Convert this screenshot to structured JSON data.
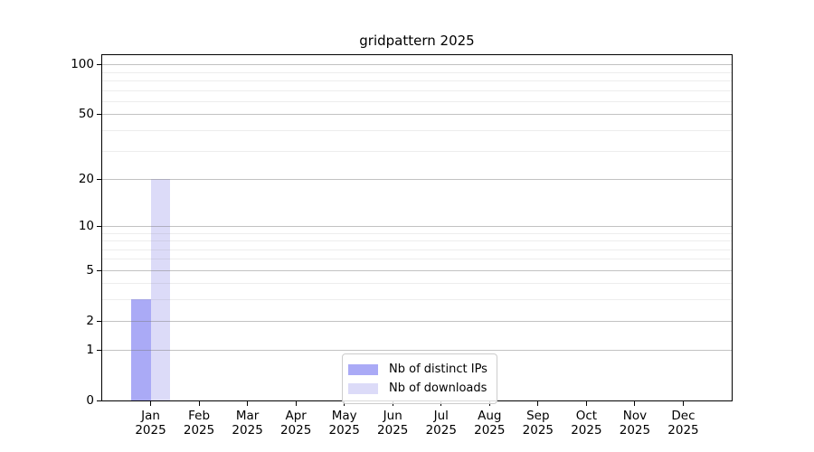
{
  "chart_data": {
    "type": "bar",
    "title": "gridpattern 2025",
    "year_label": "2025",
    "categories": [
      "Jan",
      "Feb",
      "Mar",
      "Apr",
      "May",
      "Jun",
      "Jul",
      "Aug",
      "Sep",
      "Oct",
      "Nov",
      "Dec"
    ],
    "series": [
      {
        "name": "Nb of distinct IPs",
        "color": "#aaaaf6",
        "values": [
          3,
          0,
          0,
          0,
          0,
          0,
          0,
          0,
          0,
          0,
          0,
          0
        ]
      },
      {
        "name": "Nb of downloads",
        "color": "#dcdbf8",
        "values": [
          20,
          0,
          0,
          0,
          0,
          0,
          0,
          0,
          0,
          0,
          0,
          0
        ]
      }
    ],
    "y_scale": "log1p",
    "ylim": [
      0,
      114
    ],
    "y_major_ticks": [
      0,
      1,
      2,
      5,
      10,
      20,
      50,
      100
    ],
    "y_minor_ticks": [
      3,
      4,
      6,
      7,
      8,
      9,
      30,
      40,
      60,
      70,
      80,
      90
    ],
    "grid": true,
    "legend_position": "bottom-center",
    "colors": {
      "axis": "#000000",
      "grid_major": "rgba(120,120,120,0.45)",
      "grid_minor": "rgba(140,140,140,0.16)"
    }
  }
}
